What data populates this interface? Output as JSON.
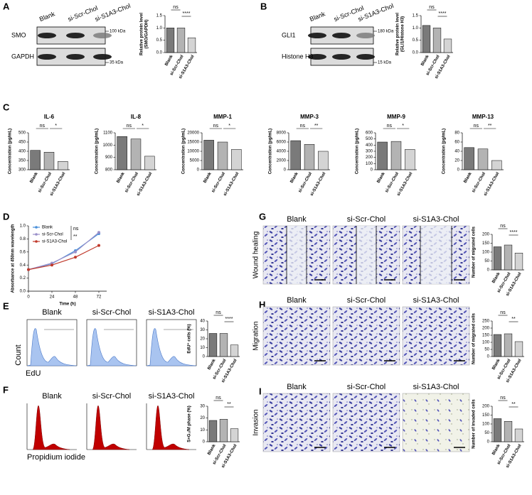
{
  "figure": {
    "letters": [
      "A",
      "B",
      "C",
      "D",
      "E",
      "F",
      "G",
      "H",
      "I"
    ],
    "conditions": [
      "Blank",
      "si-Scr-Chol",
      "si-S1A3-Chol"
    ],
    "blot_A": {
      "bands": [
        "SMO",
        "GAPDH"
      ],
      "markers": [
        "100 kDa",
        "35 kDa"
      ]
    },
    "blot_B": {
      "bands": [
        "GLI1",
        "Histone H3"
      ],
      "markers": [
        "180 kDa",
        "15 kDa"
      ]
    },
    "flow_E": {
      "y_label": "Count",
      "x_label": "EdU"
    },
    "flow_F": {
      "x_label": "Propidium iodide"
    },
    "assays": [
      "Wound healing",
      "Migration",
      "Invasion"
    ]
  },
  "chart_data": [
    {
      "type": "bar",
      "ylabel": [
        "Relative protein level",
        "(SMO/GAPDH)"
      ],
      "categories": [
        "Blank",
        "si-Scr-Chol",
        "si-S1A3-Chol"
      ],
      "values": [
        1.0,
        1.0,
        0.6
      ],
      "colors": [
        "#7a7a7a",
        "#b3b3b3",
        "#d4d4d4"
      ],
      "ylim": [
        0,
        1.5
      ],
      "yticks": [
        {
          "value": 0,
          "label": "0.0"
        },
        {
          "value": 0.5,
          "label": "0.5"
        },
        {
          "value": 1.0,
          "label": "1.0"
        },
        {
          "value": 1.5,
          "label": "1.5"
        }
      ],
      "annotations": [
        "ns",
        "****"
      ]
    },
    {
      "type": "bar",
      "ylabel": [
        "Relative protein level",
        "(GLI1/Histone H3)"
      ],
      "categories": [
        "Blank",
        "si-Scr-Chol",
        "si-S1A3-Chol"
      ],
      "values": [
        1.1,
        1.0,
        0.55
      ],
      "colors": [
        "#7a7a7a",
        "#b3b3b3",
        "#d4d4d4"
      ],
      "ylim": [
        0,
        1.5
      ],
      "yticks": [
        {
          "value": 0,
          "label": "0.0"
        },
        {
          "value": 0.5,
          "label": "0.5"
        },
        {
          "value": 1.0,
          "label": "1.0"
        },
        {
          "value": 1.5,
          "label": "1.5"
        }
      ],
      "annotations": [
        "ns",
        "****"
      ]
    },
    {
      "type": "bar",
      "title": "IL-6",
      "ylabel": "Concentration (pg/mL)",
      "categories": [
        "Blank",
        "si-Scr-Chol",
        "si-S1A3-Chol"
      ],
      "values": [
        405,
        395,
        345
      ],
      "colors": [
        "#7a7a7a",
        "#b3b3b3",
        "#d4d4d4"
      ],
      "ylim": [
        300,
        500
      ],
      "yticks": [
        300,
        350,
        400,
        450,
        500
      ],
      "annotations": [
        "ns",
        "*"
      ]
    },
    {
      "type": "bar",
      "title": "IL-8",
      "ylabel": "Concentration (pg/mL)",
      "categories": [
        "Blank",
        "si-Scr-Chol",
        "si-S1A3-Chol"
      ],
      "values": [
        1070,
        1050,
        910
      ],
      "colors": [
        "#7a7a7a",
        "#b3b3b3",
        "#d4d4d4"
      ],
      "ylim": [
        800,
        1100
      ],
      "yticks": [
        800,
        900,
        1000,
        1100
      ],
      "annotations": [
        "ns",
        "*"
      ]
    },
    {
      "type": "bar",
      "title": "MMP-1",
      "ylabel": "Concentration (pg/mL)",
      "categories": [
        "Blank",
        "si-Scr-Chol",
        "si-S1A3-Chol"
      ],
      "values": [
        16000,
        15000,
        11000
      ],
      "colors": [
        "#7a7a7a",
        "#b3b3b3",
        "#d4d4d4"
      ],
      "ylim": [
        0,
        20000
      ],
      "yticks": [
        0,
        5000,
        10000,
        15000,
        20000
      ],
      "annotations": [
        "ns",
        "*"
      ]
    },
    {
      "type": "bar",
      "title": "MMP-3",
      "ylabel": "Concentration (pg/mL)",
      "categories": [
        "Blank",
        "si-Scr-Chol",
        "si-S1A3-Chol"
      ],
      "values": [
        6300,
        5500,
        4000
      ],
      "colors": [
        "#7a7a7a",
        "#b3b3b3",
        "#d4d4d4"
      ],
      "ylim": [
        0,
        8000
      ],
      "yticks": [
        0,
        2000,
        4000,
        6000,
        8000
      ],
      "annotations": [
        "ns",
        "**"
      ]
    },
    {
      "type": "bar",
      "title": "MMP-9",
      "ylabel": "Concentration (pg/mL)",
      "categories": [
        "Blank",
        "si-Scr-Chol",
        "si-S1A3-Chol"
      ],
      "values": [
        450,
        460,
        330
      ],
      "colors": [
        "#7a7a7a",
        "#b3b3b3",
        "#d4d4d4"
      ],
      "ylim": [
        0,
        600
      ],
      "yticks": [
        0,
        100,
        200,
        300,
        400,
        500,
        600
      ],
      "annotations": [
        "ns",
        "*"
      ]
    },
    {
      "type": "bar",
      "title": "MMP-13",
      "ylabel": "Concentration (pg/mL)",
      "categories": [
        "Blank",
        "si-Scr-Chol",
        "si-S1A3-Chol"
      ],
      "values": [
        48,
        45,
        20
      ],
      "colors": [
        "#7a7a7a",
        "#b3b3b3",
        "#d4d4d4"
      ],
      "ylim": [
        0,
        80
      ],
      "yticks": [
        0,
        20,
        40,
        60,
        80
      ],
      "annotations": [
        "ns",
        "**"
      ]
    },
    {
      "type": "line",
      "ylabel": "Absorbance at 450nm wavelength",
      "xlabel": "Time (h)",
      "x": [
        0,
        24,
        48,
        72
      ],
      "xlim": [
        0,
        80
      ],
      "xticks": [
        0,
        24,
        48,
        72
      ],
      "ylim": [
        0,
        1.0
      ],
      "yticks": [
        {
          "value": 0,
          "label": "0.0"
        },
        {
          "value": 0.2,
          "label": "0.2"
        },
        {
          "value": 0.4,
          "label": "0.4"
        },
        {
          "value": 0.6,
          "label": "0.6"
        },
        {
          "value": 0.8,
          "label": "0.8"
        },
        {
          "value": 1.0,
          "label": "1.0"
        }
      ],
      "legend": "upper left",
      "annotations": [
        "ns",
        "**"
      ],
      "series": [
        {
          "name": "Blank",
          "color": "#4a90d9",
          "values": [
            0.33,
            0.42,
            0.62,
            0.88
          ]
        },
        {
          "name": "si-Scr-Chol",
          "color": "#9a8fc9",
          "values": [
            0.33,
            0.43,
            0.6,
            0.9
          ]
        },
        {
          "name": "si-S1A3-Chol",
          "color": "#c0392b",
          "values": [
            0.33,
            0.4,
            0.52,
            0.7
          ]
        }
      ]
    },
    {
      "type": "bar",
      "ylabel": "EdU⁺ cells (%)",
      "categories": [
        "Blank",
        "si-Scr-Chol",
        "si-S1A3-Chol"
      ],
      "values": [
        26,
        26,
        13
      ],
      "colors": [
        "#7a7a7a",
        "#b3b3b3",
        "#d4d4d4"
      ],
      "ylim": [
        0,
        40
      ],
      "yticks": [
        0,
        10,
        20,
        30,
        40
      ],
      "annotations": [
        "ns",
        "****"
      ]
    },
    {
      "type": "bar",
      "ylabel": "S+G₂/M phase (%)",
      "categories": [
        "Blank",
        "si-Scr-Chol",
        "si-S1A3-Chol"
      ],
      "values": [
        18,
        19,
        11
      ],
      "colors": [
        "#7a7a7a",
        "#b3b3b3",
        "#d4d4d4"
      ],
      "ylim": [
        0,
        30
      ],
      "yticks": [
        0,
        10,
        20,
        30
      ],
      "annotations": [
        "ns",
        "**"
      ]
    },
    {
      "type": "bar",
      "ylabel": "Number of migrated cells",
      "categories": [
        "Blank",
        "si-Scr-Chol",
        "si-S1A3-Chol"
      ],
      "values": [
        130,
        140,
        95
      ],
      "colors": [
        "#7a7a7a",
        "#b3b3b3",
        "#d4d4d4"
      ],
      "ylim": [
        0,
        200
      ],
      "yticks": [
        0,
        50,
        100,
        150,
        200
      ],
      "annotations": [
        "ns",
        "****"
      ]
    },
    {
      "type": "bar",
      "ylabel": "Number of migrated cells",
      "categories": [
        "Blank",
        "si-Scr-Chol",
        "si-S1A3-Chol"
      ],
      "values": [
        155,
        160,
        105
      ],
      "colors": [
        "#7a7a7a",
        "#b3b3b3",
        "#d4d4d4"
      ],
      "ylim": [
        0,
        250
      ],
      "yticks": [
        0,
        50,
        100,
        150,
        200,
        250
      ],
      "annotations": [
        "ns",
        "**"
      ]
    },
    {
      "type": "bar",
      "ylabel": "Number of invaded cells",
      "categories": [
        "Blank",
        "si-Scr-Chol",
        "si-S1A3-Chol"
      ],
      "values": [
        130,
        115,
        72
      ],
      "colors": [
        "#7a7a7a",
        "#b3b3b3",
        "#d4d4d4"
      ],
      "ylim": [
        0,
        200
      ],
      "yticks": [
        0,
        50,
        100,
        150,
        200
      ],
      "annotations": [
        "ns",
        "**"
      ]
    }
  ]
}
